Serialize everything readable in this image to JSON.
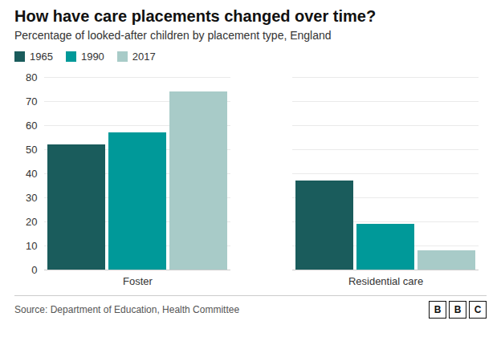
{
  "chart_data": {
    "type": "bar",
    "title": "How have care placements changed over time?",
    "subtitle": "Percentage of looked-after children by placement type, England",
    "source": "Source: Department of Education, Health Committee",
    "logo": "BBC",
    "categories": [
      "Foster",
      "Residential care"
    ],
    "series": [
      {
        "name": "1965",
        "color": "#1a5c5c",
        "values": [
          52,
          37
        ]
      },
      {
        "name": "1990",
        "color": "#009999",
        "values": [
          57,
          19
        ]
      },
      {
        "name": "2017",
        "color": "#a8cbc8",
        "values": [
          74,
          8
        ]
      }
    ],
    "ylim": [
      0,
      80
    ],
    "yticks": [
      0,
      10,
      20,
      30,
      40,
      50,
      60,
      70,
      80
    ],
    "grid": true,
    "legend": "upper left"
  }
}
